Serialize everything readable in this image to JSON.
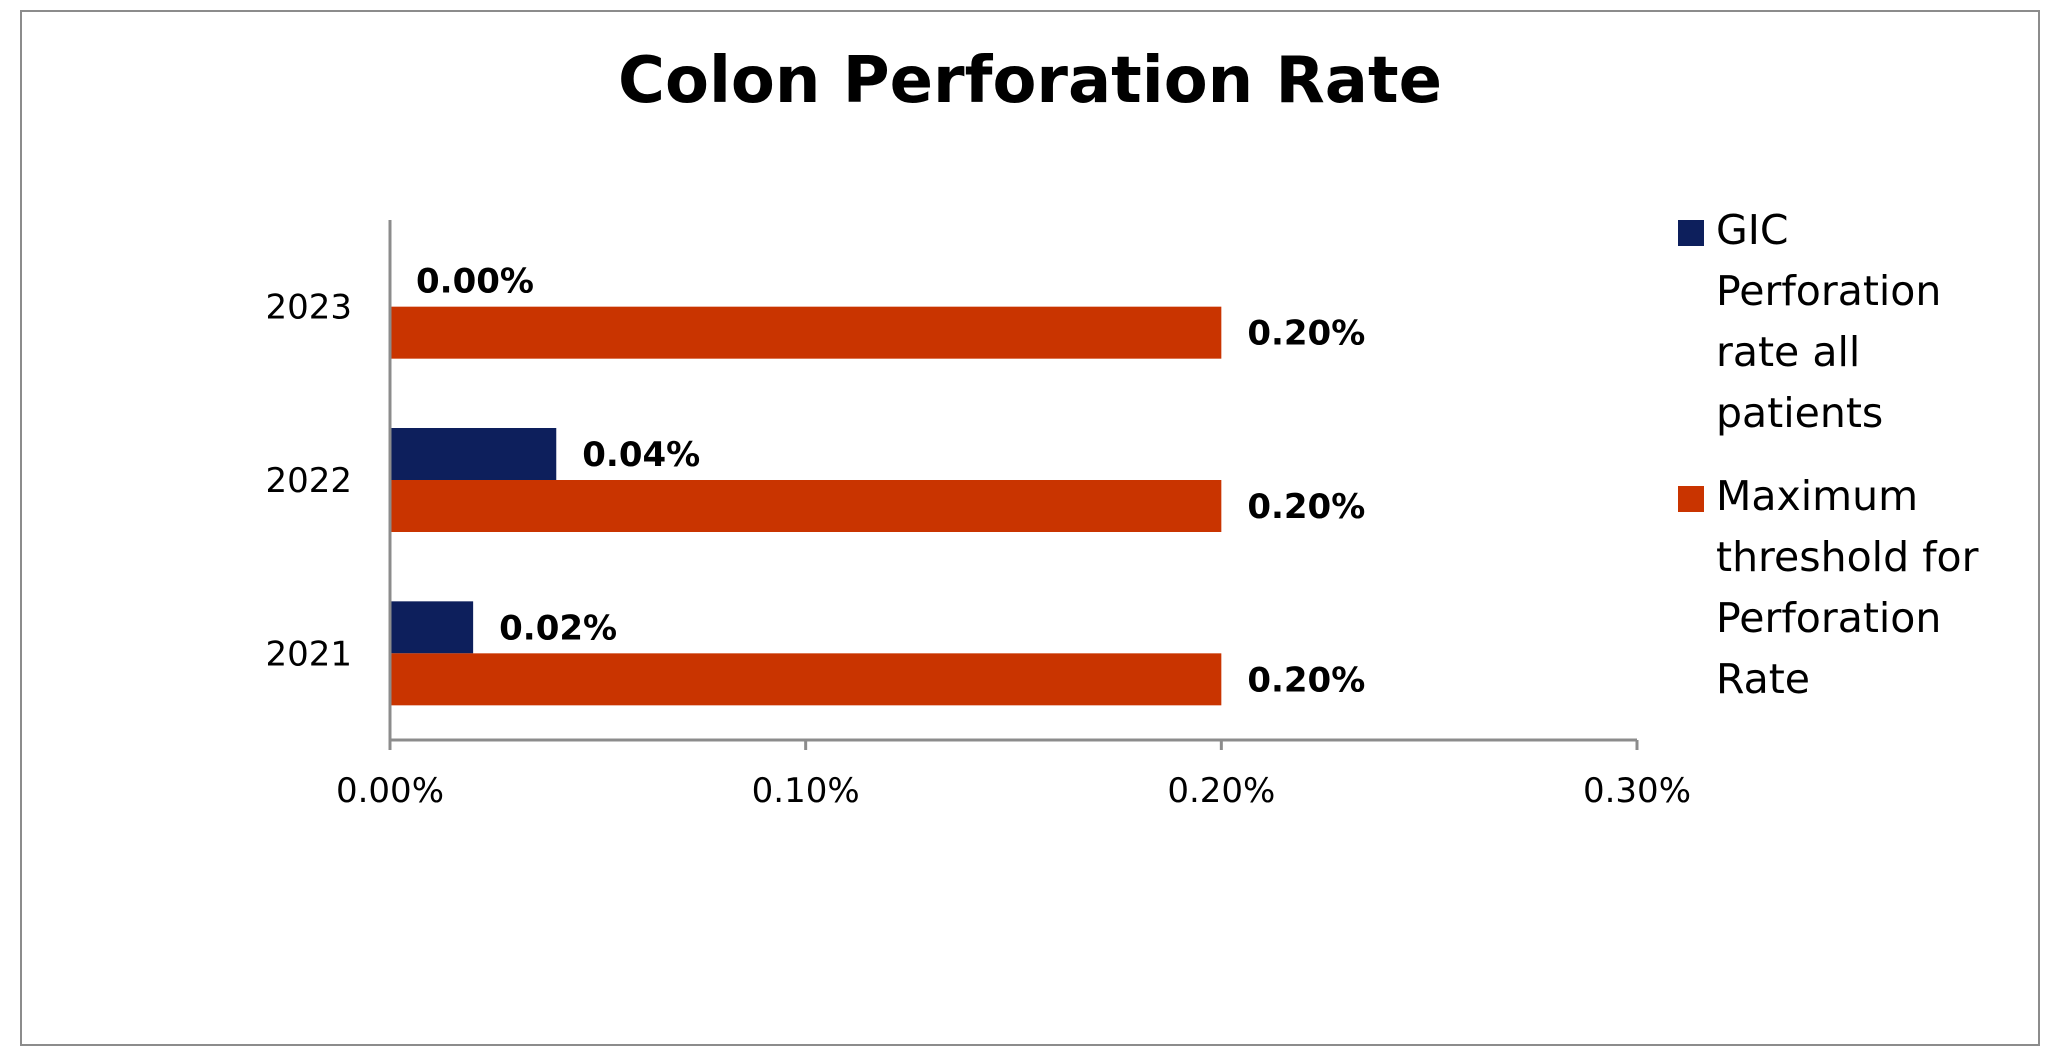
{
  "chart_data": {
    "type": "bar",
    "orientation": "horizontal",
    "title": "Colon Perforation Rate",
    "categories": [
      "2021",
      "2022",
      "2023"
    ],
    "series": [
      {
        "name": "GIC Perforation rate all patients",
        "color": "#0d1f5c",
        "values": [
          0.02,
          0.04,
          0.0
        ],
        "labels": [
          "0.02%",
          "0.04%",
          "0.00%"
        ]
      },
      {
        "name": "Maximum threshold for Perforation Rate",
        "color": "#c93400",
        "values": [
          0.2,
          0.2,
          0.2
        ],
        "labels": [
          "0.20%",
          "0.20%",
          "0.20%"
        ]
      }
    ],
    "xlim": [
      0,
      0.3
    ],
    "x_ticks": [
      0,
      0.1,
      0.2,
      0.3
    ],
    "x_tick_labels": [
      "0.00%",
      "0.10%",
      "0.20%",
      "0.30%"
    ],
    "value_unit": "%",
    "grid": false,
    "legend_position": "right"
  }
}
